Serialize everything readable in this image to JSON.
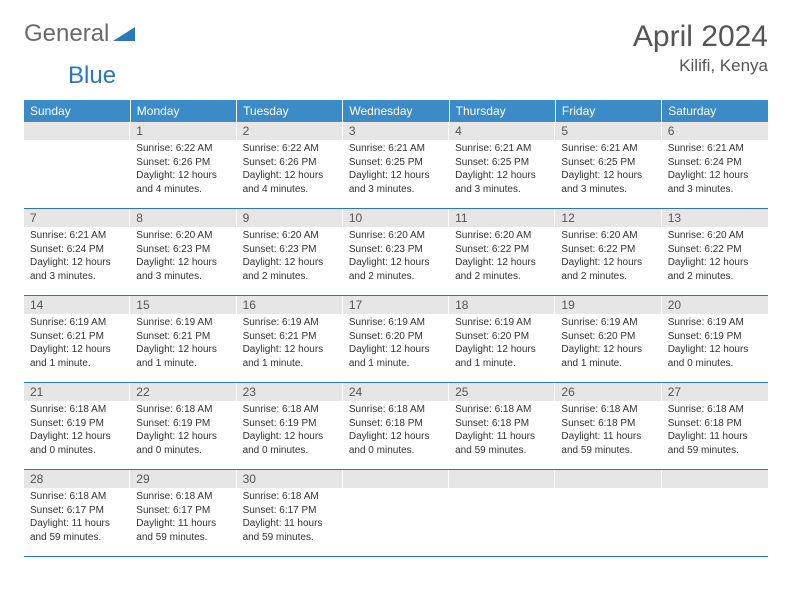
{
  "logo": {
    "part1": "General",
    "part2": "Blue"
  },
  "title": "April 2024",
  "location": "Kilifi, Kenya",
  "colors": {
    "header_bg": "#3b8bc9",
    "header_text": "#ffffff",
    "daynum_bg": "#e6e6e6",
    "row_divider": "#2a78b9",
    "logo_gray": "#6a6a6a",
    "logo_blue": "#2a78b9"
  },
  "weekdays": [
    "Sunday",
    "Monday",
    "Tuesday",
    "Wednesday",
    "Thursday",
    "Friday",
    "Saturday"
  ],
  "weeks": [
    [
      {
        "n": "",
        "lines": []
      },
      {
        "n": "1",
        "lines": [
          "Sunrise: 6:22 AM",
          "Sunset: 6:26 PM",
          "Daylight: 12 hours and 4 minutes."
        ]
      },
      {
        "n": "2",
        "lines": [
          "Sunrise: 6:22 AM",
          "Sunset: 6:26 PM",
          "Daylight: 12 hours and 4 minutes."
        ]
      },
      {
        "n": "3",
        "lines": [
          "Sunrise: 6:21 AM",
          "Sunset: 6:25 PM",
          "Daylight: 12 hours and 3 minutes."
        ]
      },
      {
        "n": "4",
        "lines": [
          "Sunrise: 6:21 AM",
          "Sunset: 6:25 PM",
          "Daylight: 12 hours and 3 minutes."
        ]
      },
      {
        "n": "5",
        "lines": [
          "Sunrise: 6:21 AM",
          "Sunset: 6:25 PM",
          "Daylight: 12 hours and 3 minutes."
        ]
      },
      {
        "n": "6",
        "lines": [
          "Sunrise: 6:21 AM",
          "Sunset: 6:24 PM",
          "Daylight: 12 hours and 3 minutes."
        ]
      }
    ],
    [
      {
        "n": "7",
        "lines": [
          "Sunrise: 6:21 AM",
          "Sunset: 6:24 PM",
          "Daylight: 12 hours and 3 minutes."
        ]
      },
      {
        "n": "8",
        "lines": [
          "Sunrise: 6:20 AM",
          "Sunset: 6:23 PM",
          "Daylight: 12 hours and 3 minutes."
        ]
      },
      {
        "n": "9",
        "lines": [
          "Sunrise: 6:20 AM",
          "Sunset: 6:23 PM",
          "Daylight: 12 hours and 2 minutes."
        ]
      },
      {
        "n": "10",
        "lines": [
          "Sunrise: 6:20 AM",
          "Sunset: 6:23 PM",
          "Daylight: 12 hours and 2 minutes."
        ]
      },
      {
        "n": "11",
        "lines": [
          "Sunrise: 6:20 AM",
          "Sunset: 6:22 PM",
          "Daylight: 12 hours and 2 minutes."
        ]
      },
      {
        "n": "12",
        "lines": [
          "Sunrise: 6:20 AM",
          "Sunset: 6:22 PM",
          "Daylight: 12 hours and 2 minutes."
        ]
      },
      {
        "n": "13",
        "lines": [
          "Sunrise: 6:20 AM",
          "Sunset: 6:22 PM",
          "Daylight: 12 hours and 2 minutes."
        ]
      }
    ],
    [
      {
        "n": "14",
        "lines": [
          "Sunrise: 6:19 AM",
          "Sunset: 6:21 PM",
          "Daylight: 12 hours and 1 minute."
        ]
      },
      {
        "n": "15",
        "lines": [
          "Sunrise: 6:19 AM",
          "Sunset: 6:21 PM",
          "Daylight: 12 hours and 1 minute."
        ]
      },
      {
        "n": "16",
        "lines": [
          "Sunrise: 6:19 AM",
          "Sunset: 6:21 PM",
          "Daylight: 12 hours and 1 minute."
        ]
      },
      {
        "n": "17",
        "lines": [
          "Sunrise: 6:19 AM",
          "Sunset: 6:20 PM",
          "Daylight: 12 hours and 1 minute."
        ]
      },
      {
        "n": "18",
        "lines": [
          "Sunrise: 6:19 AM",
          "Sunset: 6:20 PM",
          "Daylight: 12 hours and 1 minute."
        ]
      },
      {
        "n": "19",
        "lines": [
          "Sunrise: 6:19 AM",
          "Sunset: 6:20 PM",
          "Daylight: 12 hours and 1 minute."
        ]
      },
      {
        "n": "20",
        "lines": [
          "Sunrise: 6:19 AM",
          "Sunset: 6:19 PM",
          "Daylight: 12 hours and 0 minutes."
        ]
      }
    ],
    [
      {
        "n": "21",
        "lines": [
          "Sunrise: 6:18 AM",
          "Sunset: 6:19 PM",
          "Daylight: 12 hours and 0 minutes."
        ]
      },
      {
        "n": "22",
        "lines": [
          "Sunrise: 6:18 AM",
          "Sunset: 6:19 PM",
          "Daylight: 12 hours and 0 minutes."
        ]
      },
      {
        "n": "23",
        "lines": [
          "Sunrise: 6:18 AM",
          "Sunset: 6:19 PM",
          "Daylight: 12 hours and 0 minutes."
        ]
      },
      {
        "n": "24",
        "lines": [
          "Sunrise: 6:18 AM",
          "Sunset: 6:18 PM",
          "Daylight: 12 hours and 0 minutes."
        ]
      },
      {
        "n": "25",
        "lines": [
          "Sunrise: 6:18 AM",
          "Sunset: 6:18 PM",
          "Daylight: 11 hours and 59 minutes."
        ]
      },
      {
        "n": "26",
        "lines": [
          "Sunrise: 6:18 AM",
          "Sunset: 6:18 PM",
          "Daylight: 11 hours and 59 minutes."
        ]
      },
      {
        "n": "27",
        "lines": [
          "Sunrise: 6:18 AM",
          "Sunset: 6:18 PM",
          "Daylight: 11 hours and 59 minutes."
        ]
      }
    ],
    [
      {
        "n": "28",
        "lines": [
          "Sunrise: 6:18 AM",
          "Sunset: 6:17 PM",
          "Daylight: 11 hours and 59 minutes."
        ]
      },
      {
        "n": "29",
        "lines": [
          "Sunrise: 6:18 AM",
          "Sunset: 6:17 PM",
          "Daylight: 11 hours and 59 minutes."
        ]
      },
      {
        "n": "30",
        "lines": [
          "Sunrise: 6:18 AM",
          "Sunset: 6:17 PM",
          "Daylight: 11 hours and 59 minutes."
        ]
      },
      {
        "n": "",
        "lines": []
      },
      {
        "n": "",
        "lines": []
      },
      {
        "n": "",
        "lines": []
      },
      {
        "n": "",
        "lines": []
      }
    ]
  ]
}
